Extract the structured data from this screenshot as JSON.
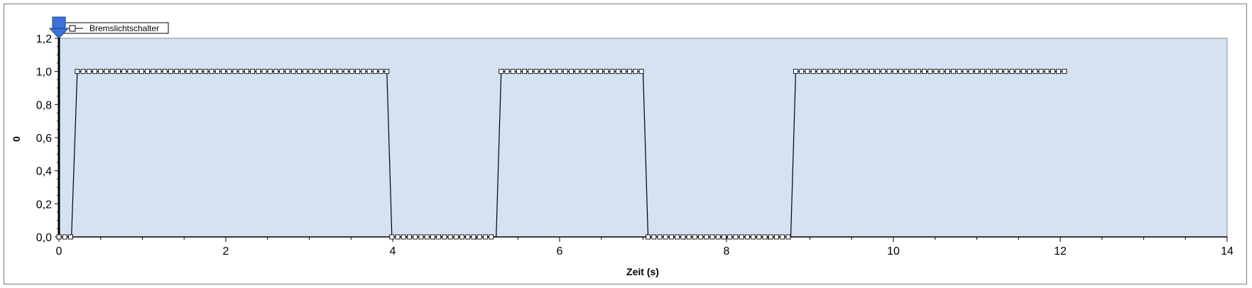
{
  "chart_data": {
    "type": "line",
    "xlabel": "Zeit (s)",
    "ylabel": "0",
    "xlim": [
      0,
      14
    ],
    "ylim": [
      0,
      1.2
    ],
    "x_ticks": [
      0,
      2,
      4,
      6,
      8,
      10,
      12,
      14
    ],
    "x_tick_labels": [
      "0",
      "2",
      "4",
      "6",
      "8",
      "10",
      "12",
      "14"
    ],
    "y_ticks": [
      0,
      0.2,
      0.4,
      0.6,
      0.8,
      1.0,
      1.2
    ],
    "y_tick_labels": [
      "0,0",
      "0,2",
      "0,4",
      "0,6",
      "0,8",
      "1,0",
      "1,2"
    ],
    "grid": false,
    "legend_position": "top-left",
    "plot_background": "#d5e2f2",
    "series": [
      {
        "name": "Bremslichtschalter",
        "color": "#000000",
        "marker": "square",
        "x": [
          0,
          0.15,
          0.22,
          3.93,
          3.99,
          5.24,
          5.3,
          7.0,
          7.06,
          8.77,
          8.83,
          12.08
        ],
        "y": [
          0,
          0,
          1,
          1,
          0,
          0,
          1,
          1,
          0,
          0,
          1,
          1
        ],
        "sample_interval": 0.07
      }
    ]
  }
}
